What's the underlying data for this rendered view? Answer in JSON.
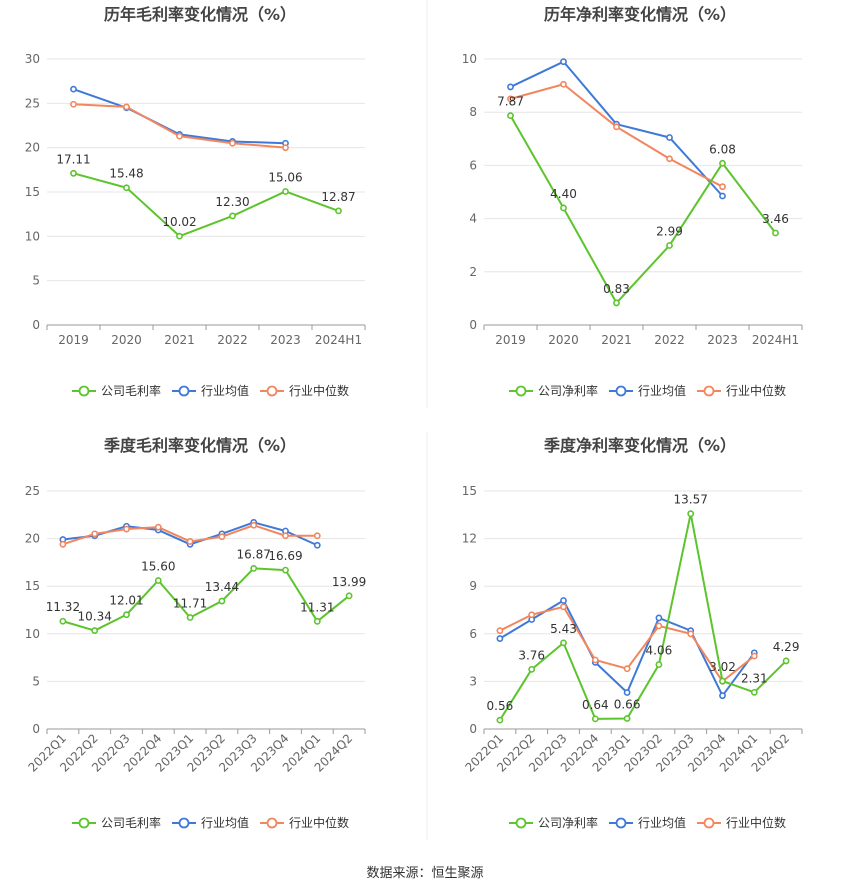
{
  "source_text": "数据来源：恒生聚源",
  "colors": {
    "company": "#5cc42c",
    "industry_avg": "#3f79d8",
    "industry_median": "#f2865e",
    "grid": "#e6e6e6",
    "axis": "#999999",
    "tick_text": "#666666",
    "title_text": "#444444",
    "label_text": "#333333"
  },
  "chart_data": [
    {
      "type": "line",
      "title": "历年毛利率变化情况（%）",
      "categories": [
        "2019",
        "2020",
        "2021",
        "2022",
        "2023",
        "2024H1"
      ],
      "ylim": [
        0,
        30
      ],
      "yticks": [
        0,
        5,
        10,
        15,
        20,
        25,
        30
      ],
      "rotate_xticks": false,
      "legend_position": "bottom-center",
      "series": [
        {
          "name": "公司毛利率",
          "key": "company",
          "values": [
            17.11,
            15.48,
            10.02,
            12.3,
            15.06,
            12.87
          ],
          "labels": [
            "17.11",
            "15.48",
            "10.02",
            "12.30",
            "15.06",
            "12.87"
          ]
        },
        {
          "name": "行业均值",
          "key": "industry_avg",
          "values": [
            26.6,
            24.5,
            21.5,
            20.7,
            20.5,
            null
          ]
        },
        {
          "name": "行业中位数",
          "key": "industry_median",
          "values": [
            24.9,
            24.6,
            21.3,
            20.5,
            20.0,
            null
          ]
        }
      ]
    },
    {
      "type": "line",
      "title": "历年净利率变化情况（%）",
      "categories": [
        "2019",
        "2020",
        "2021",
        "2022",
        "2023",
        "2024H1"
      ],
      "ylim": [
        0,
        10
      ],
      "yticks": [
        0,
        2,
        4,
        6,
        8,
        10
      ],
      "rotate_xticks": false,
      "legend_position": "bottom-center",
      "series": [
        {
          "name": "公司净利率",
          "key": "company",
          "values": [
            7.87,
            4.4,
            0.83,
            2.99,
            6.08,
            3.46
          ],
          "labels": [
            "7.87",
            "4.40",
            "0.83",
            "2.99",
            "6.08",
            "3.46"
          ]
        },
        {
          "name": "行业均值",
          "key": "industry_avg",
          "values": [
            8.95,
            9.9,
            7.55,
            7.05,
            4.85,
            null
          ]
        },
        {
          "name": "行业中位数",
          "key": "industry_median",
          "values": [
            8.5,
            9.05,
            7.45,
            6.25,
            5.2,
            null
          ]
        }
      ]
    },
    {
      "type": "line",
      "title": "季度毛利率变化情况（%）",
      "categories": [
        "2022Q1",
        "2022Q2",
        "2022Q3",
        "2022Q4",
        "2023Q1",
        "2023Q2",
        "2023Q3",
        "2023Q4",
        "2024Q1",
        "2024Q2"
      ],
      "ylim": [
        0,
        25
      ],
      "yticks": [
        0,
        5,
        10,
        15,
        20,
        25
      ],
      "rotate_xticks": true,
      "legend_position": "bottom-center",
      "series": [
        {
          "name": "公司毛利率",
          "key": "company",
          "values": [
            11.32,
            10.34,
            12.01,
            15.6,
            11.71,
            13.44,
            16.87,
            16.69,
            11.31,
            13.99
          ],
          "labels": [
            "11.32",
            "10.34",
            "12.01",
            "15.60",
            "11.71",
            "13.44",
            "16.87",
            "16.69",
            "11.31",
            "13.99"
          ]
        },
        {
          "name": "行业均值",
          "key": "industry_avg",
          "values": [
            19.9,
            20.3,
            21.3,
            20.9,
            19.4,
            20.5,
            21.7,
            20.8,
            19.3,
            null
          ]
        },
        {
          "name": "行业中位数",
          "key": "industry_median",
          "values": [
            19.4,
            20.5,
            21.0,
            21.2,
            19.7,
            20.2,
            21.4,
            20.3,
            20.3,
            null
          ]
        }
      ]
    },
    {
      "type": "line",
      "title": "季度净利率变化情况（%）",
      "categories": [
        "2022Q1",
        "2022Q2",
        "2022Q3",
        "2022Q4",
        "2023Q1",
        "2023Q2",
        "2023Q3",
        "2023Q4",
        "2024Q1",
        "2024Q2"
      ],
      "ylim": [
        0,
        15
      ],
      "yticks": [
        0,
        3,
        6,
        9,
        12,
        15
      ],
      "rotate_xticks": true,
      "legend_position": "bottom-center",
      "series": [
        {
          "name": "公司净利率",
          "key": "company",
          "values": [
            0.56,
            3.76,
            5.43,
            0.64,
            0.66,
            4.06,
            13.57,
            3.02,
            2.31,
            4.29
          ],
          "labels": [
            "0.56",
            "3.76",
            "5.43",
            "0.64",
            "0.66",
            "4.06",
            "13.57",
            "3.02",
            "2.31",
            "4.29"
          ]
        },
        {
          "name": "行业均值",
          "key": "industry_avg",
          "values": [
            5.7,
            6.9,
            8.1,
            4.2,
            2.3,
            7.0,
            6.2,
            2.1,
            4.8,
            null
          ]
        },
        {
          "name": "行业中位数",
          "key": "industry_median",
          "values": [
            6.2,
            7.2,
            7.7,
            4.35,
            3.8,
            6.5,
            6.0,
            3.0,
            4.6,
            null
          ]
        }
      ]
    }
  ]
}
